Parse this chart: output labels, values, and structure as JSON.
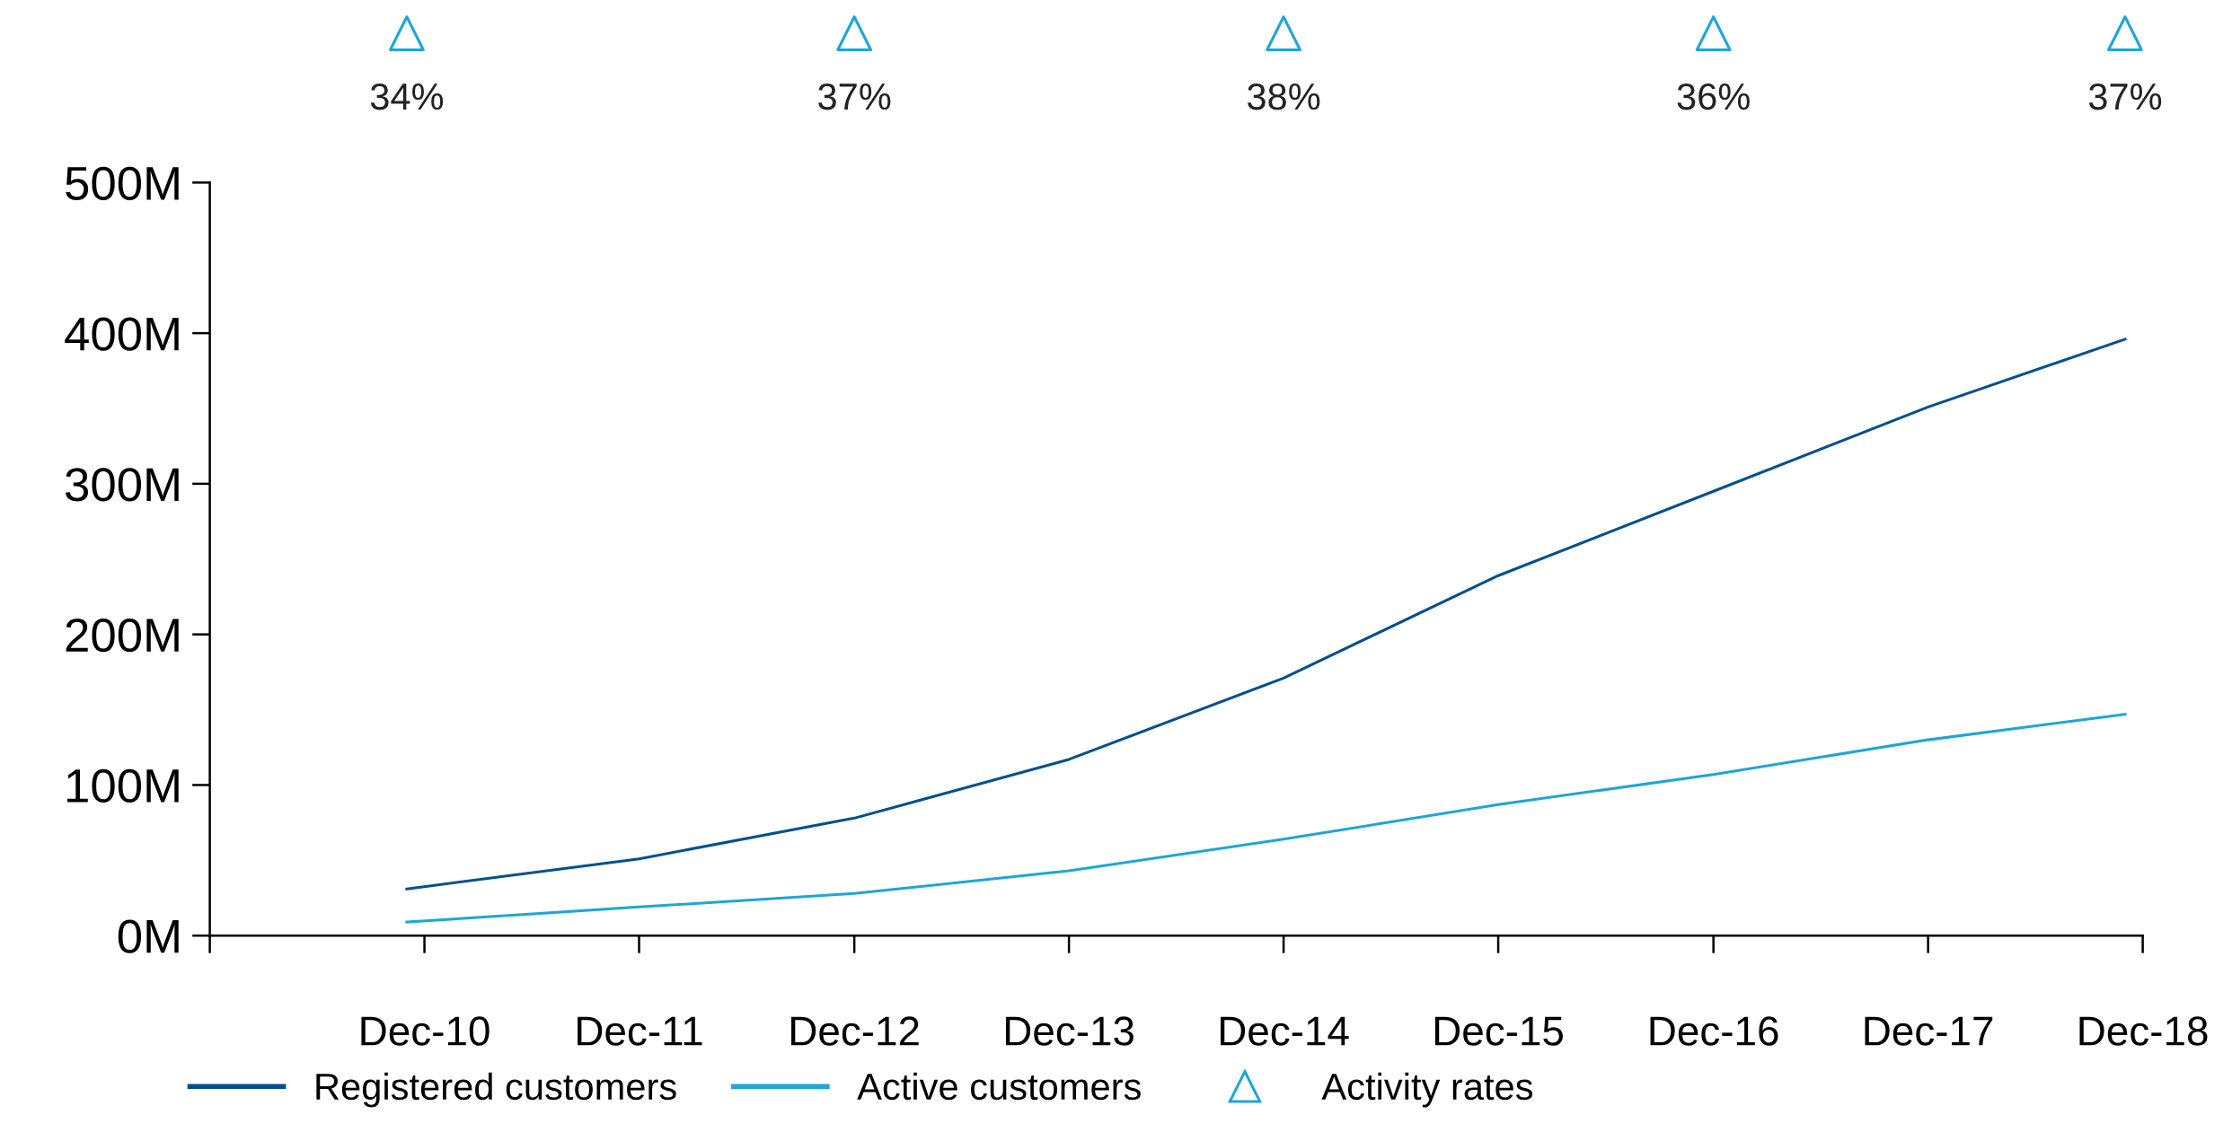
{
  "chart_data": {
    "type": "line",
    "x": [
      "2010-11",
      "2011-12",
      "2012-12",
      "2013-12",
      "2014-12",
      "2015-12",
      "2016-12",
      "2017-12",
      "2018-11"
    ],
    "series": [
      {
        "name": "Registered customers",
        "color": "#00508c",
        "values": [
          31,
          51,
          78,
          117,
          171,
          239,
          295,
          351,
          396
        ]
      },
      {
        "name": "Active customers",
        "color": "#1ca6d9",
        "values": [
          9,
          19,
          28,
          43,
          64,
          87,
          107,
          130,
          147
        ]
      },
      {
        "name": "Activity rates",
        "type": "scatter",
        "marker": "triangle",
        "color": "#1ca6d9",
        "values": [
          null,
          null,
          null,
          null,
          null,
          null,
          null,
          null,
          null
        ]
      }
    ],
    "annotations": [
      "34%",
      "37%",
      "38%",
      "36%",
      "37%"
    ],
    "xlim": [
      "2009-12",
      "2018-12"
    ],
    "xticks": [
      {
        "value": "2009-12",
        "label": null
      },
      {
        "value": "2010-12",
        "label": "Dec-10"
      },
      {
        "value": "2011-12",
        "label": "Dec-11"
      },
      {
        "value": "2012-12",
        "label": "Dec-12"
      },
      {
        "value": "2013-12",
        "label": "Dec-13"
      },
      {
        "value": "2014-12",
        "label": "Dec-14"
      },
      {
        "value": "2015-12",
        "label": "Dec-15"
      },
      {
        "value": "2016-12",
        "label": "Dec-16"
      },
      {
        "value": "2017-12",
        "label": "Dec-17"
      },
      {
        "value": "2018-12",
        "label": "Dec-18"
      }
    ],
    "ylim": [
      0,
      500
    ],
    "yticks": [
      {
        "value": 0,
        "label": "0M"
      },
      {
        "value": 100,
        "label": "100M"
      },
      {
        "value": 200,
        "label": "200M"
      },
      {
        "value": 300,
        "label": "300M"
      },
      {
        "value": 400,
        "label": "400M"
      },
      {
        "value": 500,
        "label": "500M"
      }
    ],
    "grid": false,
    "legend": "bottom left",
    "line_style": "solid"
  }
}
